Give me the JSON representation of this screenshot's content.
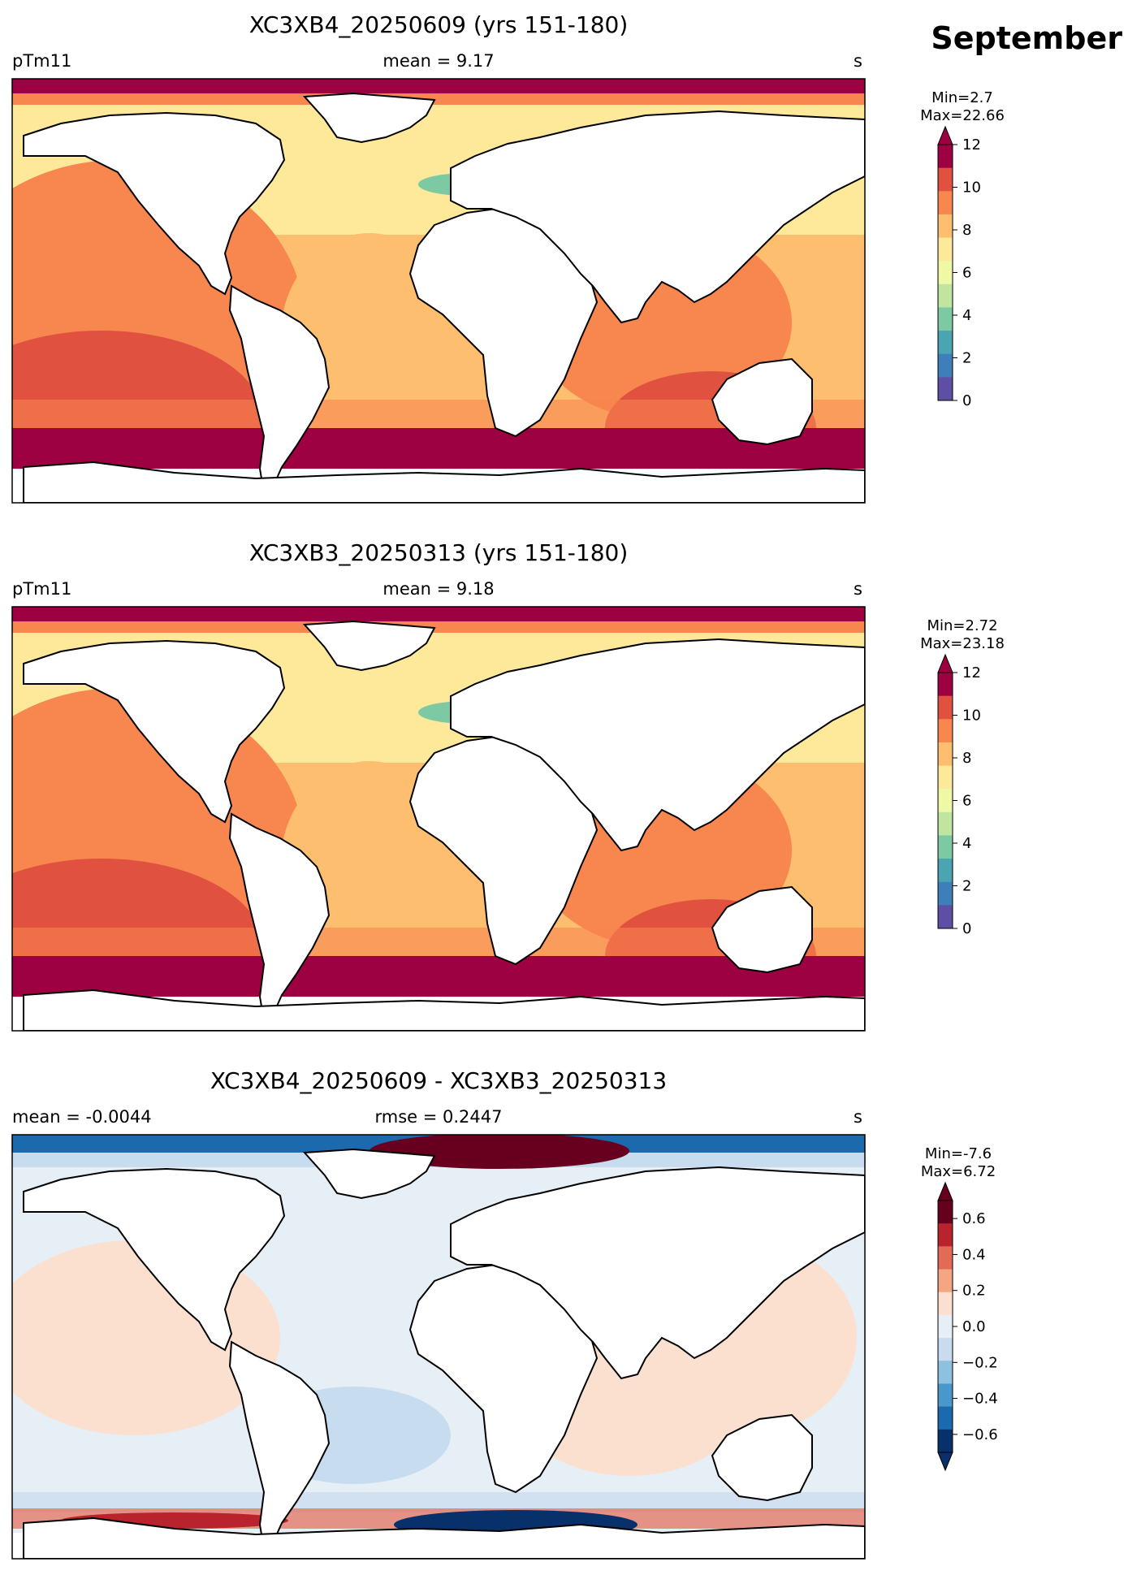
{
  "figure": {
    "month_label": "September"
  },
  "panels": [
    {
      "title": "XC3XB4_20250609 (yrs 151-180)",
      "left_label": "pTm11",
      "center_label": "mean = 9.17",
      "right_label": "s",
      "colorbar": {
        "min_label": "Min=2.7",
        "max_label": "Max=22.66",
        "ticks": [
          "0",
          "2",
          "4",
          "6",
          "8",
          "10",
          "12"
        ],
        "extend": "max"
      }
    },
    {
      "title": "XC3XB3_20250313 (yrs 151-180)",
      "left_label": "pTm11",
      "center_label": "mean = 9.18",
      "right_label": "s",
      "colorbar": {
        "min_label": "Min=2.72",
        "max_label": "Max=23.18",
        "ticks": [
          "0",
          "2",
          "4",
          "6",
          "8",
          "10",
          "12"
        ],
        "extend": "max"
      }
    },
    {
      "title": "XC3XB4_20250609 - XC3XB3_20250313",
      "left_label": "mean = -0.0044",
      "center_label": "rmse = 0.2447",
      "right_label": "s",
      "colorbar": {
        "min_label": "Min=-7.6",
        "max_label": "Max=6.72",
        "ticks": [
          "0.6",
          "0.4",
          "0.2",
          "0.0",
          "−0.2",
          "−0.4",
          "−0.6"
        ],
        "extend": "both"
      }
    }
  ],
  "colors": {
    "seq_scale": [
      "#5e4fa2",
      "#3f7fb9",
      "#4aa4b1",
      "#7cc9a4",
      "#bfe5a0",
      "#eef8a6",
      "#fee99b",
      "#fdbf6f",
      "#f8864f",
      "#e0523f",
      "#9e0142"
    ],
    "div_scale": [
      "#08306b",
      "#1c6aae",
      "#4a98c9",
      "#8ec0df",
      "#c7dcef",
      "#e7eff6",
      "#fbe0d0",
      "#f4a582",
      "#e26b57",
      "#b8232d",
      "#67001f"
    ],
    "land": "#ffffff",
    "coast": "#000000"
  }
}
